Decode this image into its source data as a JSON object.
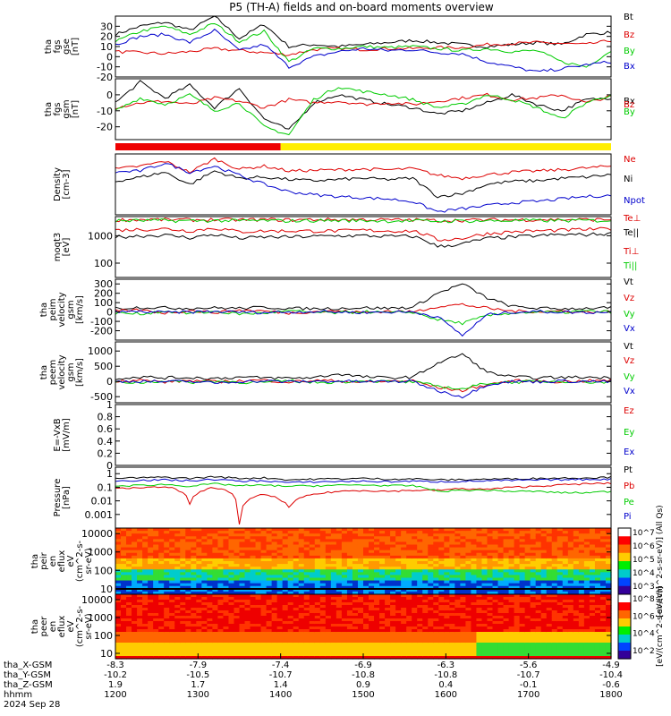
{
  "title": "P5 (TH-A) fields and on-board moments overview",
  "chart_data": [
    {
      "type": "line",
      "ylabel": [
        "tha",
        "fgs",
        "gse",
        "[nT]"
      ],
      "ylim": [
        -20,
        40
      ],
      "yticks": [
        -20,
        -10,
        0,
        10,
        20,
        30
      ],
      "series": [
        {
          "name": "Bt",
          "color": "#000000",
          "values": [
            22,
            30,
            34,
            26,
            40,
            18,
            32,
            10,
            12,
            10,
            12,
            14,
            16,
            14,
            12,
            10,
            12,
            14,
            12,
            22,
            24
          ]
        },
        {
          "name": "Bz",
          "color": "#dd0000",
          "values": [
            5,
            4,
            3,
            5,
            8,
            6,
            4,
            2,
            7,
            8,
            7,
            8,
            8,
            9,
            9,
            12,
            13,
            14,
            13,
            12,
            16
          ]
        },
        {
          "name": "By",
          "color": "#00cc00",
          "values": [
            15,
            25,
            30,
            22,
            33,
            15,
            25,
            -5,
            8,
            8,
            10,
            9,
            10,
            8,
            6,
            8,
            5,
            6,
            -5,
            -10,
            6
          ]
        },
        {
          "name": "Bx",
          "color": "#0000cc",
          "values": [
            12,
            20,
            22,
            14,
            26,
            6,
            12,
            -10,
            0,
            5,
            8,
            6,
            7,
            4,
            3,
            -5,
            -10,
            -15,
            -12,
            -8,
            -5
          ]
        }
      ]
    },
    {
      "type": "line",
      "ylabel": [
        "tha",
        "fgs",
        "gsm",
        "[nT]"
      ],
      "ylim": [
        -28,
        10
      ],
      "yticks": [
        -20,
        -10,
        0
      ],
      "series": [
        {
          "name": "Bx",
          "color": "#000000",
          "values": [
            -5,
            8,
            -2,
            6,
            -8,
            4,
            -15,
            -22,
            -5,
            0,
            -3,
            -6,
            -8,
            -12,
            -10,
            -5,
            0,
            -6,
            -10,
            -3,
            -2
          ]
        },
        {
          "name": "Bz",
          "color": "#dd0000",
          "values": [
            -8,
            -5,
            -4,
            -6,
            -2,
            -4,
            -8,
            -3,
            -5,
            -4,
            -6,
            -5,
            -6,
            -4,
            -2,
            0,
            -3,
            -2,
            0,
            -5,
            -1
          ]
        },
        {
          "name": "By",
          "color": "#00cc00",
          "values": [
            -10,
            -2,
            -6,
            0,
            -10,
            -5,
            -20,
            -25,
            -3,
            5,
            2,
            0,
            -3,
            -8,
            -6,
            0,
            -3,
            -8,
            -15,
            -5,
            0
          ]
        }
      ]
    },
    {
      "type": "bar",
      "name": "mode-bar",
      "segments": [
        {
          "from": 1200,
          "to": 1400,
          "color": "#ee0000"
        },
        {
          "from": 1400,
          "to": 1800,
          "color": "#ffee00"
        }
      ]
    },
    {
      "type": "line",
      "ylabel": [
        "Density",
        "[cm-3]"
      ],
      "ylim": [
        0,
        1
      ],
      "series": [
        {
          "name": "Ne",
          "color": "#dd0000",
          "values": [
            0.75,
            0.8,
            0.88,
            0.7,
            0.92,
            0.75,
            0.8,
            0.72,
            0.73,
            0.74,
            0.75,
            0.74,
            0.76,
            0.65,
            0.6,
            0.66,
            0.7,
            0.72,
            0.74,
            0.77,
            0.8
          ]
        },
        {
          "name": "Ni",
          "color": "#000000",
          "values": [
            0.55,
            0.62,
            0.7,
            0.5,
            0.72,
            0.6,
            0.62,
            0.58,
            0.56,
            0.58,
            0.6,
            0.58,
            0.6,
            0.3,
            0.35,
            0.5,
            0.55,
            0.56,
            0.6,
            0.62,
            0.66
          ]
        },
        {
          "name": "Npot",
          "color": "#0000cc",
          "values": [
            0.7,
            0.72,
            0.85,
            0.7,
            0.8,
            0.65,
            0.5,
            0.38,
            0.33,
            0.3,
            0.28,
            0.26,
            0.22,
            0.05,
            0.1,
            0.15,
            0.2,
            0.22,
            0.26,
            0.3,
            0.32
          ]
        }
      ]
    },
    {
      "type": "line",
      "ylabel": [
        "moqt3",
        "[eV]"
      ],
      "ylim": [
        30,
        5000
      ],
      "yticks": [
        100,
        1000
      ],
      "scale": "log",
      "series": [
        {
          "name": "Te⊥",
          "color": "#dd0000",
          "values": [
            1600,
            1700,
            1800,
            1500,
            1900,
            1400,
            1500,
            1500,
            1500,
            1500,
            1600,
            1500,
            1500,
            700,
            800,
            1200,
            1400,
            1500,
            1600,
            1700,
            1800
          ]
        },
        {
          "name": "Te||",
          "color": "#000000",
          "values": [
            900,
            1000,
            1050,
            850,
            1100,
            800,
            900,
            900,
            950,
            1000,
            1000,
            950,
            950,
            400,
            500,
            800,
            900,
            1000,
            1100,
            1100,
            1200
          ]
        },
        {
          "name": "Ti⊥",
          "color": "#dd0000",
          "values": [
            3800,
            3900,
            3900,
            3800,
            3900,
            3800,
            3900,
            3800,
            3900,
            3900,
            3900,
            3800,
            3800,
            3600,
            3700,
            3800,
            3800,
            3900,
            3900,
            3900,
            3900
          ]
        },
        {
          "name": "Ti||",
          "color": "#00cc00",
          "values": [
            3500,
            3600,
            3600,
            3500,
            3600,
            3500,
            3600,
            3500,
            3600,
            3600,
            3600,
            3500,
            3500,
            3400,
            3500,
            3500,
            3600,
            3600,
            3600,
            3600,
            3600
          ]
        }
      ]
    },
    {
      "type": "line",
      "ylabel": [
        "tha",
        "peim",
        "velocity",
        "gsm",
        "[km/s]"
      ],
      "ylim": [
        -300,
        350
      ],
      "yticks": [
        -200,
        -100,
        0,
        100,
        200,
        300
      ],
      "series": [
        {
          "name": "Vt",
          "color": "#000000",
          "values": [
            40,
            50,
            45,
            40,
            45,
            40,
            50,
            40,
            35,
            40,
            45,
            40,
            50,
            200,
            300,
            150,
            60,
            40,
            35,
            40,
            45
          ]
        },
        {
          "name": "Vz",
          "color": "#dd0000",
          "values": [
            10,
            20,
            -10,
            15,
            -5,
            20,
            10,
            -10,
            5,
            10,
            -5,
            10,
            0,
            60,
            80,
            40,
            10,
            5,
            10,
            0,
            5
          ]
        },
        {
          "name": "Vy",
          "color": "#00cc00",
          "values": [
            -10,
            -20,
            10,
            -15,
            5,
            -20,
            -10,
            10,
            -5,
            -10,
            5,
            -10,
            0,
            -80,
            -120,
            -40,
            -10,
            0,
            -5,
            10,
            0
          ]
        },
        {
          "name": "Vx",
          "color": "#0000cc",
          "values": [
            0,
            5,
            -5,
            0,
            5,
            0,
            -5,
            0,
            5,
            0,
            -5,
            0,
            0,
            -50,
            -250,
            -30,
            0,
            5,
            0,
            -5,
            0
          ]
        }
      ]
    },
    {
      "type": "line",
      "ylabel": [
        "tha",
        "peem",
        "velocity",
        "gsm",
        "[km/s]"
      ],
      "ylim": [
        -700,
        1300
      ],
      "yticks": [
        -500,
        0,
        500,
        1000
      ],
      "series": [
        {
          "name": "Vt",
          "color": "#000000",
          "values": [
            100,
            150,
            120,
            130,
            100,
            140,
            120,
            110,
            130,
            250,
            150,
            120,
            140,
            600,
            900,
            300,
            150,
            120,
            130,
            140,
            120
          ]
        },
        {
          "name": "Vz",
          "color": "#dd0000",
          "values": [
            20,
            40,
            -20,
            30,
            -10,
            20,
            40,
            -20,
            30,
            20,
            -30,
            10,
            20,
            -200,
            -300,
            -100,
            20,
            10,
            -10,
            20,
            30
          ]
        },
        {
          "name": "Vy",
          "color": "#00cc00",
          "values": [
            -20,
            -40,
            20,
            -30,
            10,
            -20,
            -40,
            20,
            -30,
            -20,
            30,
            -10,
            -20,
            -150,
            -250,
            -50,
            -20,
            -10,
            10,
            -20,
            -30
          ]
        },
        {
          "name": "Vx",
          "color": "#0000cc",
          "values": [
            0,
            10,
            -10,
            0,
            -50,
            0,
            10,
            -10,
            0,
            10,
            -10,
            0,
            0,
            -300,
            -500,
            -100,
            0,
            -10,
            10,
            0,
            -10
          ]
        }
      ]
    },
    {
      "type": "line",
      "ylabel": [
        "E=-VxB",
        "[mV/m]"
      ],
      "ylim": [
        0,
        1
      ],
      "yticks": [
        0.0,
        0.2,
        0.4,
        0.6,
        0.8,
        1.0
      ],
      "series": [
        {
          "name": "Ez",
          "color": "#dd0000",
          "values": []
        },
        {
          "name": "Ey",
          "color": "#00cc00",
          "values": []
        },
        {
          "name": "Ex",
          "color": "#0000cc",
          "values": []
        }
      ]
    },
    {
      "type": "line",
      "ylabel": [
        "Pressure",
        "[nPa]"
      ],
      "ylim": [
        0.0001,
        3
      ],
      "yticks": [
        0.001,
        0.01,
        0.1,
        1.0
      ],
      "scale": "log",
      "series": [
        {
          "name": "Pt",
          "color": "#000000",
          "values": [
            0.45,
            0.5,
            0.55,
            0.45,
            0.6,
            0.45,
            0.5,
            0.35,
            0.4,
            0.42,
            0.45,
            0.4,
            0.42,
            0.35,
            0.36,
            0.4,
            0.42,
            0.45,
            0.48,
            0.5,
            0.55
          ]
        },
        {
          "name": "Pb",
          "color": "#dd0000",
          "values": [
            0.1,
            0.08,
            0.12,
            0.005,
            0.1,
            0.0002,
            0.03,
            0.003,
            0.03,
            0.05,
            0.06,
            0.05,
            0.06,
            0.06,
            0.08,
            0.07,
            0.1,
            0.12,
            0.15,
            0.18,
            0.2
          ]
        },
        {
          "name": "Pe",
          "color": "#00cc00",
          "values": [
            0.12,
            0.14,
            0.16,
            0.12,
            0.18,
            0.13,
            0.14,
            0.12,
            0.13,
            0.14,
            0.15,
            0.13,
            0.13,
            0.05,
            0.06,
            0.06,
            0.05,
            0.05,
            0.04,
            0.04,
            0.05
          ]
        },
        {
          "name": "Pi",
          "color": "#0000cc",
          "values": [
            0.3,
            0.33,
            0.35,
            0.3,
            0.38,
            0.28,
            0.3,
            0.22,
            0.25,
            0.27,
            0.28,
            0.26,
            0.28,
            0.26,
            0.27,
            0.3,
            0.32,
            0.34,
            0.36,
            0.38,
            0.4
          ]
        }
      ]
    },
    {
      "type": "heatmap",
      "ylabel": [
        "tha",
        "peir",
        "en",
        "eflux",
        "eV",
        "(cm^2-s-",
        "sr-eV)"
      ],
      "ylim": [
        5,
        20000
      ],
      "yticks": [
        10,
        100,
        1000,
        10000
      ],
      "scale": "log"
    },
    {
      "type": "heatmap",
      "ylabel": [
        "tha",
        "peer",
        "en",
        "eflux",
        "eV",
        "(cm^2-s-",
        "sr-eV)"
      ],
      "ylim": [
        5,
        20000
      ],
      "yticks": [
        10,
        100,
        1000,
        10000
      ],
      "scale": "log"
    }
  ],
  "colorbars": [
    {
      "ticks": [
        "10^7",
        "10^6",
        "10^5",
        "10^4",
        "10^3"
      ],
      "label": "[eV/(cm^2-s-sr-eV)] (All Qs)"
    },
    {
      "ticks": [
        "10^8",
        "10^6",
        "10^4",
        "10^2"
      ],
      "label": "[eV/(cm^2-s-sr-eV)]"
    }
  ],
  "x_axis": {
    "ticks_hhmm": [
      "1200",
      "1300",
      "1400",
      "1500",
      "1600",
      "1700",
      "1800"
    ],
    "rows": [
      {
        "label": "tha_X-GSM",
        "values": [
          "-8.3",
          "-7.9",
          "-7.4",
          "-6.9",
          "-6.3",
          "-5.6",
          "-4.9"
        ]
      },
      {
        "label": "tha_Y-GSM",
        "values": [
          "-10.2",
          "-10.5",
          "-10.7",
          "-10.8",
          "-10.8",
          "-10.7",
          "-10.4"
        ]
      },
      {
        "label": "tha_Z-GSM",
        "values": [
          "1.9",
          "1.7",
          "1.4",
          "0.9",
          "0.4",
          "-0.1",
          "-0.6"
        ]
      },
      {
        "label": "hhmm",
        "values": [
          "1200",
          "1300",
          "1400",
          "1500",
          "1600",
          "1700",
          "1800"
        ]
      }
    ],
    "date": "2024 Sep 28"
  }
}
